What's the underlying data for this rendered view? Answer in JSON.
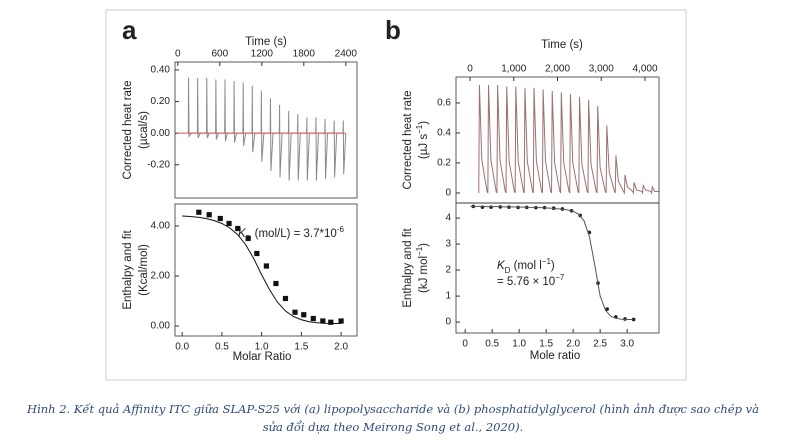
{
  "panels": [
    "a",
    "b"
  ],
  "caption": [
    "Hình 2. Kết quả Affinity ITC giữa SLAP-S25 với (a) lipopolysaccharide và (b) phosphatidylglycerol (hình ảnh được sao chép và",
    "sửa đổi dựa theo Meirong Song et al., 2020)."
  ],
  "chart_data": [
    {
      "type": "line",
      "xaxis_position": "top",
      "xlabel": [
        [
          "Time (s)"
        ]
      ],
      "ylabel": [
        [
          "Corrected heat rate"
        ],
        [
          "(µcal/s)"
        ]
      ],
      "xlim": [
        -40,
        2560
      ],
      "ylim": [
        -0.41,
        0.45
      ],
      "xticks": [
        0,
        600,
        1200,
        1800,
        2400
      ],
      "yticks": [
        {
          "value": 0.4,
          "label": "0.40"
        },
        {
          "value": 0.2,
          "label": "0.20"
        },
        {
          "value": 0,
          "label": "0.00"
        },
        {
          "value": -0.2,
          "label": "-0.20"
        }
      ],
      "series": [
        {
          "color": "#8a8a8a",
          "mode": "line",
          "x": [
            150,
            154,
            160,
            190,
            280,
            284,
            290,
            320,
            410,
            414,
            420,
            450,
            540,
            544,
            550,
            580,
            670,
            674,
            680,
            710,
            800,
            804,
            810,
            840,
            930,
            934,
            940,
            970,
            1060,
            1064,
            1070,
            1100,
            1190,
            1194,
            1200,
            1230,
            1320,
            1324,
            1330,
            1360,
            1450,
            1454,
            1460,
            1490,
            1580,
            1584,
            1590,
            1620,
            1710,
            1714,
            1720,
            1750,
            1840,
            1844,
            1850,
            1880,
            1970,
            1974,
            1980,
            2010,
            2100,
            2104,
            2110,
            2140,
            2230,
            2234,
            2240,
            2270,
            2360,
            2364,
            2370,
            2400
          ],
          "values": [
            0,
            0.35,
            -0.02,
            0,
            0,
            0.35,
            -0.03,
            0,
            0,
            0.35,
            -0.03,
            0,
            0,
            0.34,
            -0.04,
            0,
            0,
            0.34,
            -0.05,
            0,
            0,
            0.33,
            -0.06,
            0,
            0,
            0.32,
            -0.08,
            0,
            0,
            0.3,
            -0.12,
            0,
            0,
            0.27,
            -0.18,
            0,
            0,
            0.22,
            -0.24,
            0,
            0,
            0.18,
            -0.28,
            0,
            0,
            0.14,
            -0.3,
            0,
            0,
            0.12,
            -0.3,
            0,
            0,
            0.1,
            -0.3,
            0,
            0,
            0.1,
            -0.3,
            0,
            0,
            0.09,
            -0.29,
            0,
            0,
            0.08,
            -0.28,
            0,
            0,
            0.08,
            -0.26,
            0
          ]
        },
        {
          "color": "#d9534f",
          "mode": "line",
          "x": [
            0,
            2400
          ],
          "values": [
            0,
            0
          ]
        }
      ]
    },
    {
      "type": "scatter",
      "xlabel": [
        [
          "Molar Ratio"
        ]
      ],
      "ylabel": [
        [
          "Enthalpy and fit"
        ],
        [
          "(Kcal/mol)"
        ]
      ],
      "annotation": [
        [
          {
            "italic": "K"
          },
          {
            "sub": "D"
          },
          " (mol/L) = 3.7*10",
          {
            "sup": "-6"
          }
        ]
      ],
      "xlim": [
        -0.09,
        2.2
      ],
      "ylim": [
        -0.4,
        4.88
      ],
      "xticks": [
        {
          "value": 0,
          "label": "0.0"
        },
        0.5,
        {
          "value": 1,
          "label": "1.0"
        },
        1.5,
        {
          "value": 2,
          "label": "2.0"
        }
      ],
      "yticks": [
        {
          "value": 0,
          "label": "0.00"
        },
        {
          "value": 2,
          "label": "2.00"
        },
        {
          "value": 4,
          "label": "4.00"
        }
      ],
      "series": [
        {
          "color": "#111111",
          "mode": "markers",
          "marker": "square",
          "x": [
            0.21,
            0.34,
            0.48,
            0.59,
            0.7,
            0.83,
            0.94,
            1.06,
            1.18,
            1.3,
            1.42,
            1.53,
            1.65,
            1.77,
            1.87,
            2.0
          ],
          "values": [
            4.55,
            4.45,
            4.3,
            4.1,
            3.9,
            3.5,
            2.9,
            2.4,
            1.7,
            1.1,
            0.55,
            0.45,
            0.3,
            0.2,
            0.15,
            0.2
          ]
        },
        {
          "color": "#111111",
          "mode": "line",
          "x": [
            0,
            0.1,
            0.2,
            0.3,
            0.4,
            0.5,
            0.6,
            0.7,
            0.8,
            0.9,
            1.0,
            1.1,
            1.2,
            1.3,
            1.4,
            1.5,
            1.6,
            1.7,
            1.8,
            1.9,
            2.0
          ],
          "values": [
            4.4,
            4.38,
            4.35,
            4.3,
            4.22,
            4.1,
            3.92,
            3.65,
            3.25,
            2.7,
            2.05,
            1.45,
            0.95,
            0.6,
            0.38,
            0.25,
            0.17,
            0.13,
            0.11,
            0.1,
            0.1
          ]
        }
      ]
    },
    {
      "type": "line",
      "xaxis_position": "top",
      "xlabel": [
        [
          "Time (s)"
        ]
      ],
      "ylabel": [
        [
          "Corrected heat rate"
        ],
        [
          "(µJ s",
          {
            "sup": "−1"
          },
          ")"
        ]
      ],
      "xlim": [
        -320,
        4320
      ],
      "ylim": [
        -0.067,
        0.773
      ],
      "xticks": [
        0,
        {
          "value": 1000,
          "label": "1,000"
        },
        {
          "value": 2000,
          "label": "2,000"
        },
        {
          "value": 3000,
          "label": "3,000"
        },
        {
          "value": 4000,
          "label": "4,000"
        }
      ],
      "yticks": [
        0,
        0.2,
        0.4,
        0.6
      ],
      "series": [
        {
          "color": "#9b7070",
          "mode": "line",
          "x": [
            200,
            215,
            270,
            390,
            408,
            423,
            478,
            598,
            616,
            631,
            686,
            806,
            824,
            839,
            894,
            1014,
            1032,
            1047,
            1102,
            1222,
            1240,
            1255,
            1310,
            1430,
            1448,
            1463,
            1518,
            1638,
            1656,
            1671,
            1726,
            1846,
            1864,
            1879,
            1934,
            2054,
            2072,
            2087,
            2142,
            2262,
            2280,
            2295,
            2350,
            2470,
            2488,
            2503,
            2558,
            2678,
            2696,
            2711,
            2766,
            2886,
            2904,
            2919,
            2974,
            3094,
            3112,
            3127,
            3182,
            3302,
            3320,
            3335,
            3390,
            3510,
            3528,
            3543,
            3598,
            3718,
            3736,
            3751,
            3806,
            3926,
            3944,
            3959,
            4014,
            4134,
            4152,
            4167,
            4222,
            4342
          ],
          "values": [
            0,
            0.72,
            0.22,
            0.01,
            0,
            0.72,
            0.22,
            0.01,
            0,
            0.72,
            0.22,
            0.01,
            0,
            0.71,
            0.21,
            0.01,
            0,
            0.71,
            0.21,
            0.01,
            0,
            0.7,
            0.21,
            0.01,
            0,
            0.7,
            0.21,
            0.01,
            0,
            0.69,
            0.21,
            0.01,
            0,
            0.68,
            0.2,
            0.01,
            0,
            0.67,
            0.2,
            0.01,
            0,
            0.66,
            0.2,
            0.01,
            0,
            0.64,
            0.19,
            0.01,
            0,
            0.62,
            0.19,
            0.01,
            0,
            0.58,
            0.17,
            0.01,
            0,
            0.45,
            0.14,
            0.01,
            0,
            0.25,
            0.08,
            0.01,
            0,
            0.12,
            0.04,
            0.01,
            0,
            0.07,
            0.02,
            0.01,
            0,
            0.05,
            0.02,
            0.01,
            0,
            0.04,
            0.01,
            0.01
          ]
        }
      ]
    },
    {
      "type": "scatter",
      "xlabel": [
        [
          "Mole ratio"
        ]
      ],
      "ylabel": [
        [
          "Enthalpy and fit"
        ],
        [
          "(kJ mol",
          {
            "sup": "−1"
          },
          ")"
        ]
      ],
      "annotation": [
        [
          {
            "italic": "K"
          },
          {
            "sub": "D"
          },
          " (mol l",
          {
            "sup": "−1"
          },
          ")"
        ],
        [
          "= 5.76 × 10",
          {
            "sup": "−7"
          }
        ]
      ],
      "xlim": [
        -0.17,
        3.59
      ],
      "ylim": [
        -0.42,
        4.58
      ],
      "xticks": [
        0,
        0.5,
        {
          "value": 1,
          "label": "1.0"
        },
        1.5,
        {
          "value": 2,
          "label": "2.0"
        },
        2.5,
        {
          "value": 3,
          "label": "3.0"
        }
      ],
      "yticks": [
        0,
        1,
        2,
        3,
        4
      ],
      "series": [
        {
          "color": "#222222",
          "mode": "markers",
          "marker": "circle",
          "x": [
            0.15,
            0.32,
            0.48,
            0.65,
            0.81,
            0.98,
            1.14,
            1.31,
            1.47,
            1.64,
            1.8,
            1.97,
            2.13,
            2.3,
            2.46,
            2.63,
            2.79,
            2.96,
            3.12
          ],
          "values": [
            4.45,
            4.42,
            4.42,
            4.43,
            4.42,
            4.41,
            4.41,
            4.4,
            4.4,
            4.38,
            4.35,
            4.28,
            4.1,
            3.45,
            1.5,
            0.5,
            0.2,
            0.12,
            0.1
          ]
        },
        {
          "color": "#555555",
          "mode": "line",
          "x": [
            0.1,
            0.2,
            0.3,
            0.4,
            0.5,
            0.6,
            0.7,
            0.8,
            0.9,
            1.0,
            1.1,
            1.2,
            1.3,
            1.4,
            1.5,
            1.6,
            1.7,
            1.8,
            1.9,
            2.0,
            2.1,
            2.2,
            2.3,
            2.4,
            2.5,
            2.6,
            2.7,
            2.8,
            2.9,
            3.0,
            3.1
          ],
          "values": [
            4.45,
            4.45,
            4.45,
            4.44,
            4.44,
            4.44,
            4.43,
            4.43,
            4.43,
            4.42,
            4.42,
            4.41,
            4.41,
            4.4,
            4.39,
            4.38,
            4.36,
            4.34,
            4.31,
            4.26,
            4.15,
            3.9,
            3.3,
            2.2,
            1.0,
            0.45,
            0.22,
            0.14,
            0.11,
            0.1,
            0.1
          ]
        }
      ]
    }
  ]
}
